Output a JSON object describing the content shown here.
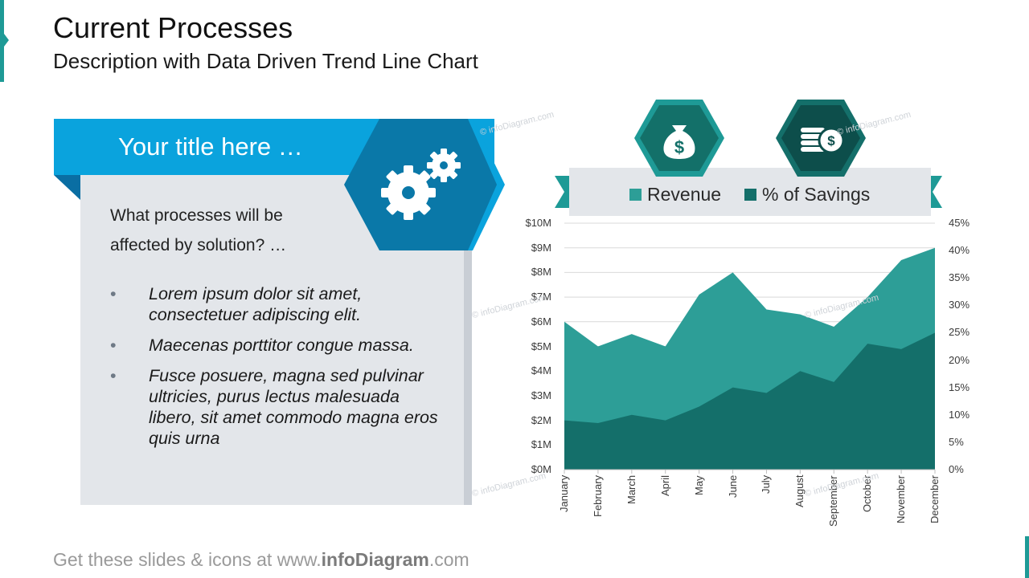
{
  "header": {
    "title": "Current Processes",
    "subtitle": "Description with Data Driven Trend Line Chart"
  },
  "card": {
    "title": "Your title here …",
    "question": "What processes will be affected by solution? …",
    "bullets": [
      "Lorem ipsum dolor sit amet, consectetuer adipiscing elit.",
      "Maecenas porttitor congue massa.",
      "Fusce posuere, magna sed pulvinar ultricies, purus lectus malesuada libero, sit amet commodo magna eros quis urna"
    ],
    "bullet_symbol": "•",
    "icon": "gears-icon"
  },
  "icons": {
    "revenue": "money-bag-icon",
    "savings": "coins-icon"
  },
  "footer": {
    "prefix": "Get these slides & icons at www.",
    "brand": "infoDiagram",
    "suffix": ".com"
  },
  "watermark": "© infoDiagram.com",
  "colors": {
    "teal_light": "#2d9e97",
    "teal_dark": "#146f6a",
    "blue_banner": "#0aa3dd",
    "blue_hex": "#0a78a8"
  },
  "chart_data": {
    "type": "area",
    "categories": [
      "January",
      "February",
      "March",
      "April",
      "May",
      "June",
      "July",
      "August",
      "September",
      "October",
      "November",
      "December"
    ],
    "series": [
      {
        "name": "Revenue",
        "axis": "left",
        "unit": "$M",
        "values": [
          6.0,
          5.0,
          5.5,
          5.0,
          7.1,
          8.0,
          6.5,
          6.3,
          5.8,
          7.0,
          8.5,
          9.0
        ]
      },
      {
        "name": "% of Savings",
        "axis": "right",
        "unit": "%",
        "values": [
          9,
          8.5,
          10,
          9,
          11.5,
          15,
          14,
          18,
          16,
          23,
          22,
          25
        ]
      }
    ],
    "y_left": {
      "ticks": [
        "$0M",
        "$1M",
        "$2M",
        "$3M",
        "$4M",
        "$5M",
        "$6M",
        "$7M",
        "$8M",
        "$9M",
        "$10M"
      ],
      "range": [
        0,
        10
      ]
    },
    "y_right": {
      "ticks": [
        "0%",
        "5%",
        "10%",
        "15%",
        "20%",
        "25%",
        "30%",
        "35%",
        "40%",
        "45%"
      ],
      "range": [
        0,
        45
      ]
    },
    "legend_position": "top",
    "grid": true
  }
}
